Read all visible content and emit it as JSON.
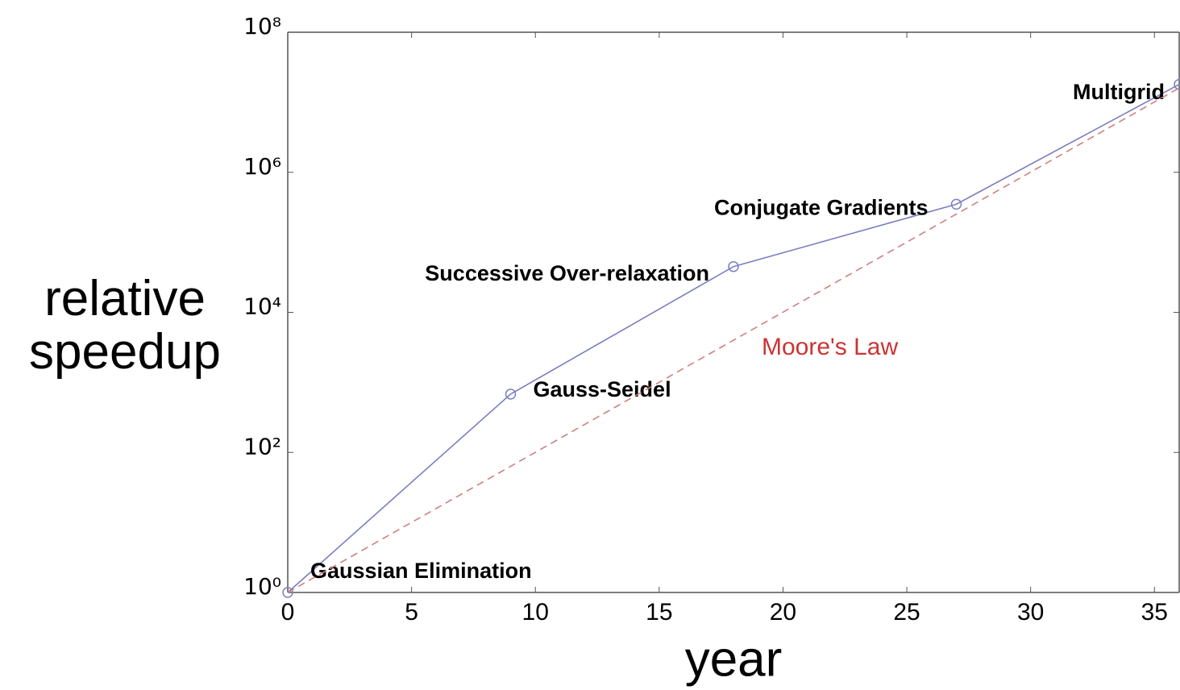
{
  "chart_data": {
    "type": "line",
    "log_y": true,
    "x_label": "year",
    "y_label": "relative speedup",
    "xlim": [
      0,
      36
    ],
    "xticks": [
      0,
      5,
      10,
      15,
      20,
      25,
      30,
      35
    ],
    "ylim": [
      1,
      100000000
    ],
    "yticks": [
      {
        "value": 1,
        "label": "10⁰"
      },
      {
        "value": 100,
        "label": "10²"
      },
      {
        "value": 10000,
        "label": "10⁴"
      },
      {
        "value": 1000000,
        "label": "10⁶"
      },
      {
        "value": 100000000,
        "label": "10⁸"
      }
    ],
    "series": [
      {
        "color": "#7a7fc0",
        "x": [
          0,
          9,
          18,
          27,
          36
        ],
        "values": [
          1,
          680,
          45000,
          350000,
          18000000
        ],
        "labels": [
          "Gaussian Elimination",
          "Gauss-Seidel",
          "Successive Over-relaxation",
          "Conjugate Gradients",
          "Multigrid"
        ]
      },
      {
        "name": "Moore's Law",
        "color": "#d08080",
        "dashed": true,
        "x": [
          0,
          36
        ],
        "values": [
          1,
          16000000
        ]
      }
    ]
  }
}
